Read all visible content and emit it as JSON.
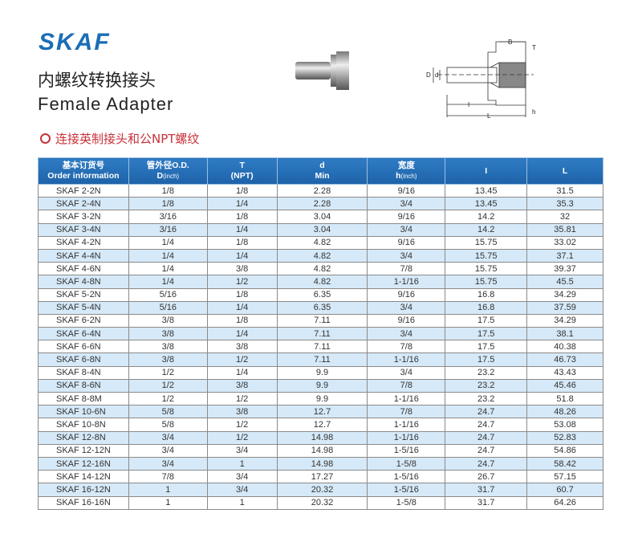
{
  "header": {
    "brand": "SKAF",
    "title_cn": "内螺纹转换接头",
    "title_en": "Female Adapter",
    "subtitle": "连接英制接头和公NPT螺纹"
  },
  "diagram_labels": {
    "B": "B",
    "T": "T",
    "D": "D",
    "d": "d",
    "I": "I",
    "L": "L",
    "h": "h"
  },
  "table": {
    "headers": [
      {
        "line1": "基本订货号",
        "line2": "Order information",
        "unit": ""
      },
      {
        "line1": "管外径O.D.",
        "line2": "D",
        "unit": "(inch)"
      },
      {
        "line1": "T",
        "line2": "(NPT)",
        "unit": ""
      },
      {
        "line1": "d",
        "line2": "Min",
        "unit": ""
      },
      {
        "line1": "宽度",
        "line2": "h",
        "unit": "(inch)"
      },
      {
        "line1": "I",
        "line2": "",
        "unit": ""
      },
      {
        "line1": "L",
        "line2": "",
        "unit": ""
      }
    ],
    "rows": [
      [
        "SKAF 2-2N",
        "1/8",
        "1/8",
        "2.28",
        "9/16",
        "13.45",
        "31.5"
      ],
      [
        "SKAF 2-4N",
        "1/8",
        "1/4",
        "2.28",
        "3/4",
        "13.45",
        "35.3"
      ],
      [
        "SKAF 3-2N",
        "3/16",
        "1/8",
        "3.04",
        "9/16",
        "14.2",
        "32"
      ],
      [
        "SKAF 3-4N",
        "3/16",
        "1/4",
        "3.04",
        "3/4",
        "14.2",
        "35.81"
      ],
      [
        "SKAF 4-2N",
        "1/4",
        "1/8",
        "4.82",
        "9/16",
        "15.75",
        "33.02"
      ],
      [
        "SKAF 4-4N",
        "1/4",
        "1/4",
        "4.82",
        "3/4",
        "15.75",
        "37.1"
      ],
      [
        "SKAF 4-6N",
        "1/4",
        "3/8",
        "4.82",
        "7/8",
        "15.75",
        "39.37"
      ],
      [
        "SKAF 4-8N",
        "1/4",
        "1/2",
        "4.82",
        "1-1/16",
        "15.75",
        "45.5"
      ],
      [
        "SKAF 5-2N",
        "5/16",
        "1/8",
        "6.35",
        "9/16",
        "16.8",
        "34.29"
      ],
      [
        "SKAF 5-4N",
        "5/16",
        "1/4",
        "6.35",
        "3/4",
        "16.8",
        "37.59"
      ],
      [
        "SKAF 6-2N",
        "3/8",
        "1/8",
        "7.11",
        "9/16",
        "17.5",
        "34.29"
      ],
      [
        "SKAF 6-4N",
        "3/8",
        "1/4",
        "7.11",
        "3/4",
        "17.5",
        "38.1"
      ],
      [
        "SKAF 6-6N",
        "3/8",
        "3/8",
        "7.11",
        "7/8",
        "17.5",
        "40.38"
      ],
      [
        "SKAF 6-8N",
        "3/8",
        "1/2",
        "7.11",
        "1-1/16",
        "17.5",
        "46.73"
      ],
      [
        "SKAF 8-4N",
        "1/2",
        "1/4",
        "9.9",
        "3/4",
        "23.2",
        "43.43"
      ],
      [
        "SKAF 8-6N",
        "1/2",
        "3/8",
        "9.9",
        "7/8",
        "23.2",
        "45.46"
      ],
      [
        "SKAF 8-8M",
        "1/2",
        "1/2",
        "9.9",
        "1-1/16",
        "23.2",
        "51.8"
      ],
      [
        "SKAF 10-6N",
        "5/8",
        "3/8",
        "12.7",
        "7/8",
        "24.7",
        "48.26"
      ],
      [
        "SKAF 10-8N",
        "5/8",
        "1/2",
        "12.7",
        "1-1/16",
        "24.7",
        "53.08"
      ],
      [
        "SKAF 12-8N",
        "3/4",
        "1/2",
        "14.98",
        "1-1/16",
        "24.7",
        "52.83"
      ],
      [
        "SKAF 12-12N",
        "3/4",
        "3/4",
        "14.98",
        "1-5/16",
        "24.7",
        "54.86"
      ],
      [
        "SKAF 12-16N",
        "3/4",
        "1",
        "14.98",
        "1-5/8",
        "24.7",
        "58.42"
      ],
      [
        "SKAF 14-12N",
        "7/8",
        "3/4",
        "17.27",
        "1-5/16",
        "26.7",
        "57.15"
      ],
      [
        "SKAF 16-12N",
        "1",
        "3/4",
        "20.32",
        "1-5/16",
        "31.7",
        "60.7"
      ],
      [
        "SKAF 16-16N",
        "1",
        "1",
        "20.32",
        "1-5/8",
        "31.7",
        "64.26"
      ]
    ]
  },
  "colors": {
    "brand": "#1b6db5",
    "subtitle": "#c8323a",
    "header_bg": "#1d62a8",
    "alt_row": "#d6e9f8"
  }
}
